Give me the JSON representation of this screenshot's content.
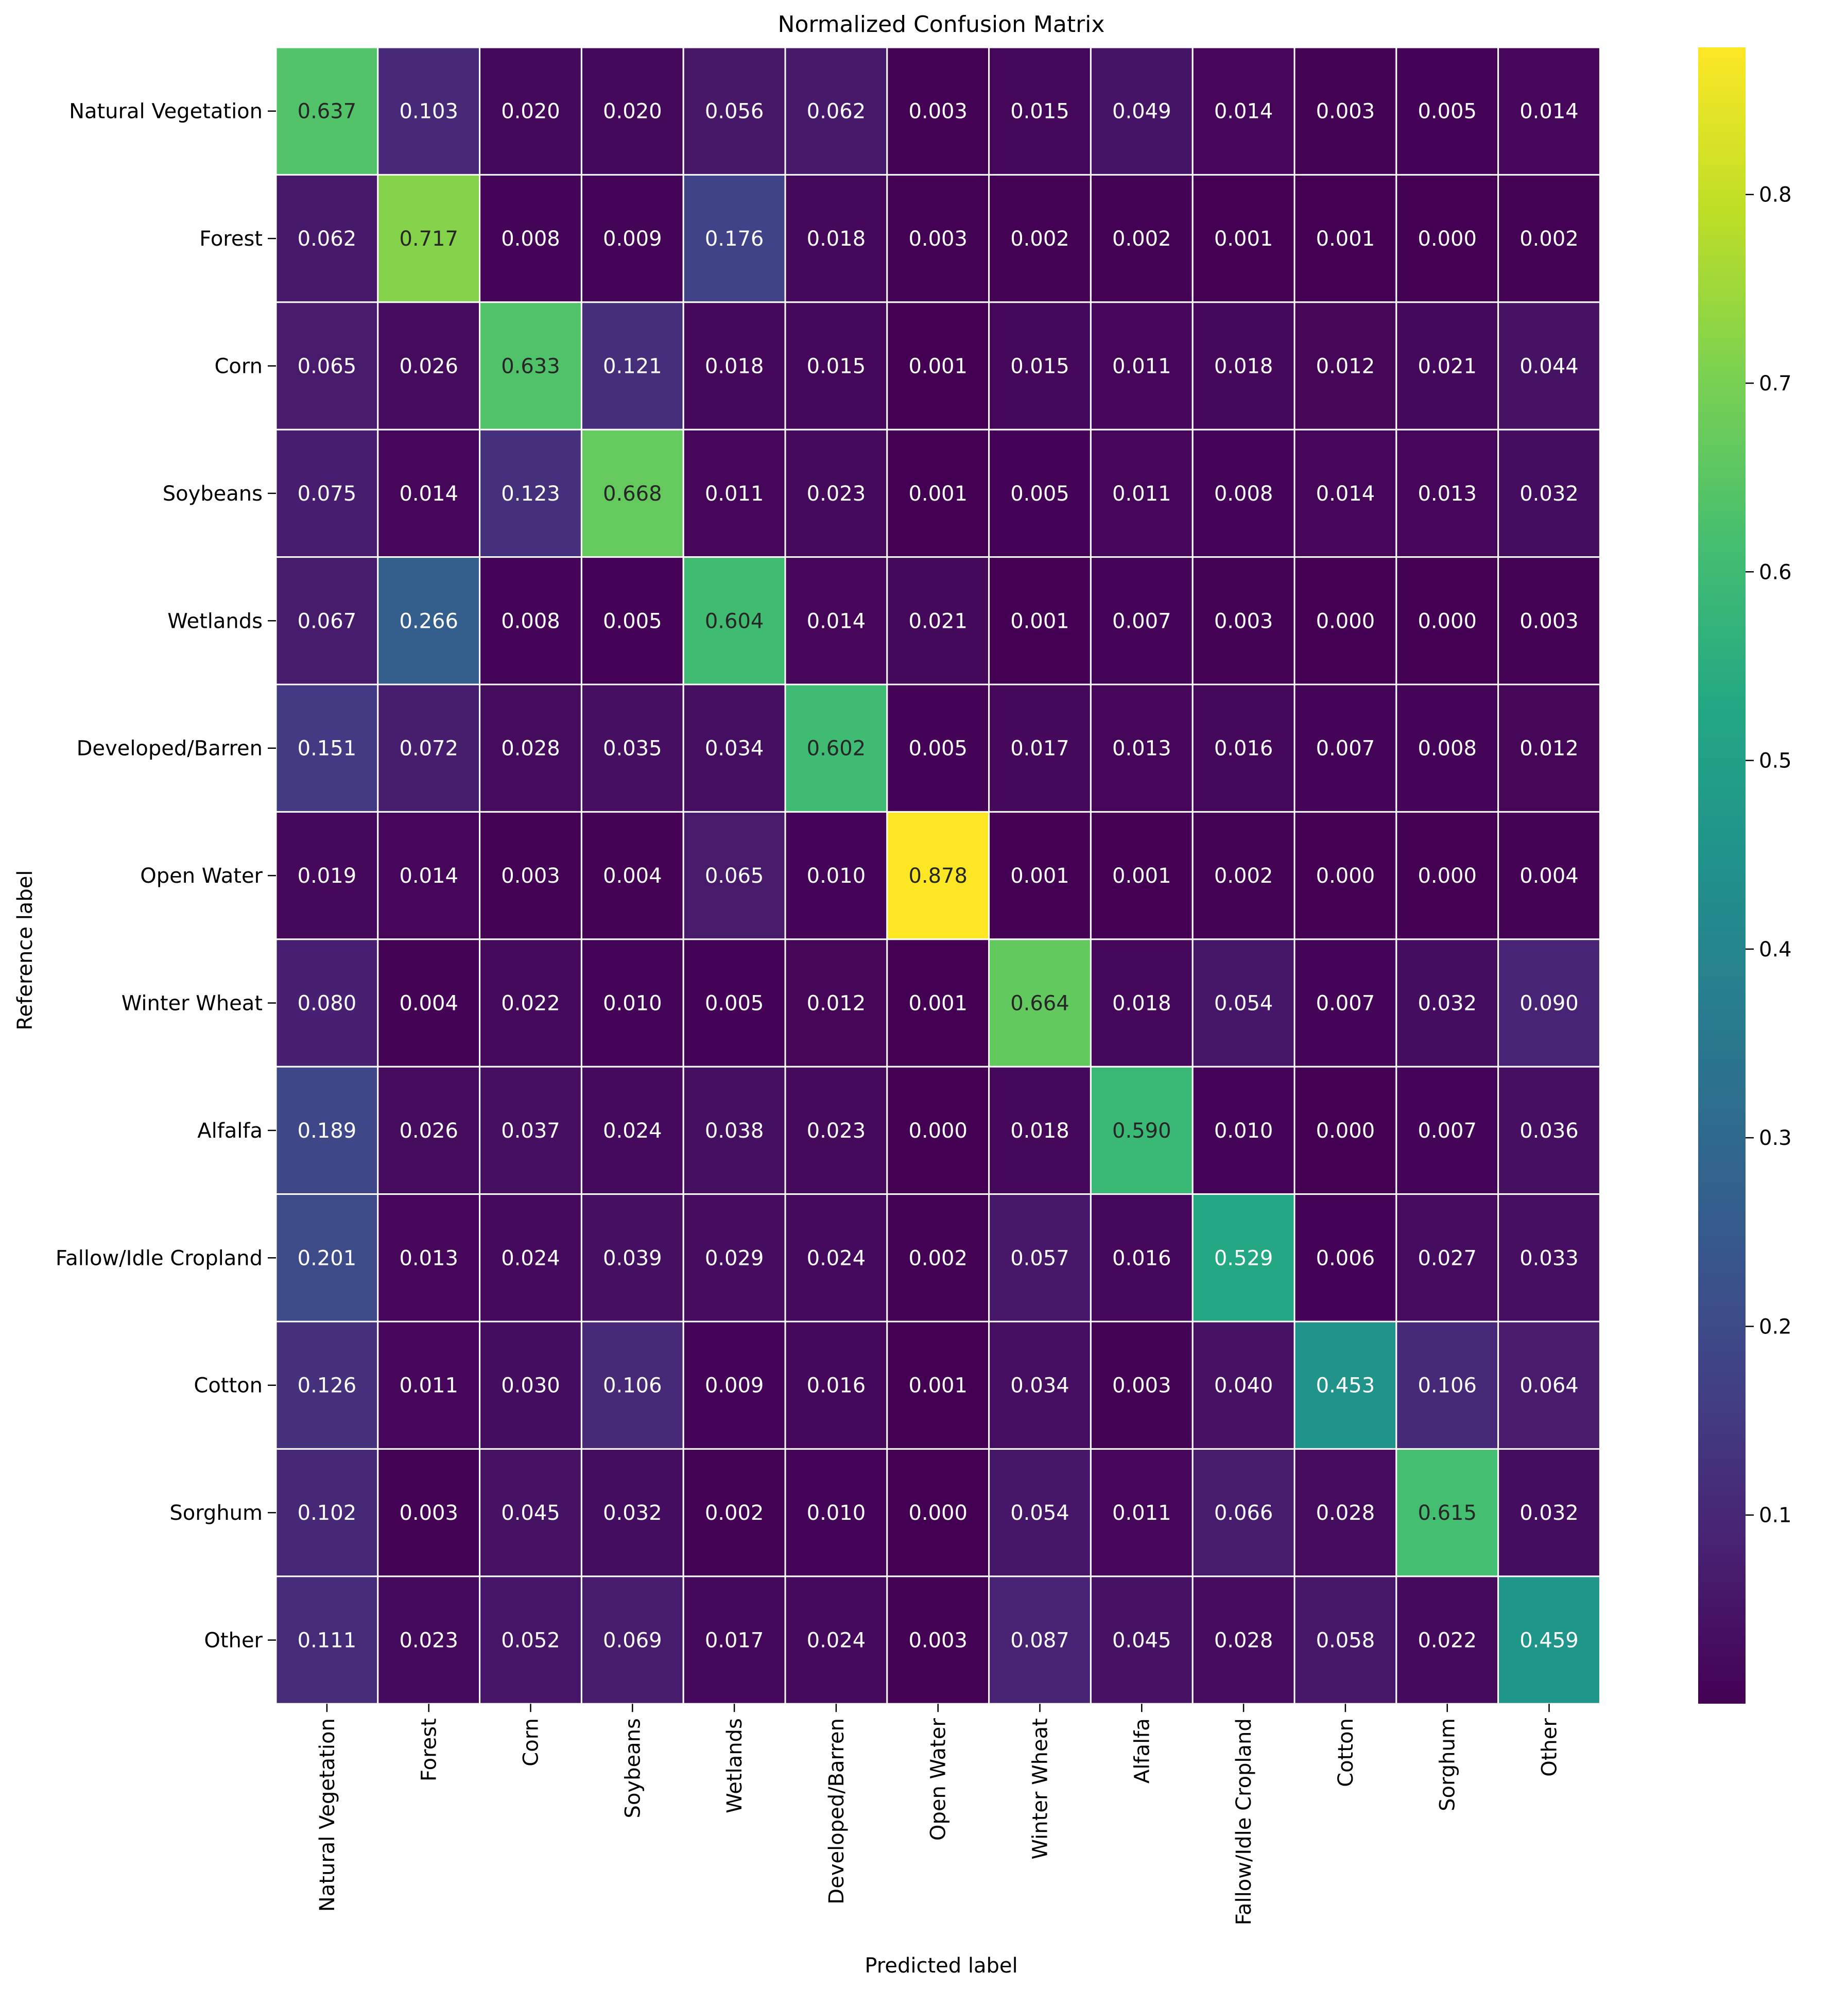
{
  "chart_data": {
    "type": "heatmap",
    "title": "Normalized Confusion Matrix",
    "xlabel": "Predicted label",
    "ylabel": "Reference label",
    "row_labels": [
      "Natural Vegetation",
      "Forest",
      "Corn",
      "Soybeans",
      "Wetlands",
      "Developed/Barren",
      "Open Water",
      "Winter Wheat",
      "Alfalfa",
      "Fallow/Idle Cropland",
      "Cotton",
      "Sorghum",
      "Other"
    ],
    "col_labels": [
      "Natural Vegetation",
      "Forest",
      "Corn",
      "Soybeans",
      "Wetlands",
      "Developed/Barren",
      "Open Water",
      "Winter Wheat",
      "Alfalfa",
      "Fallow/Idle Cropland",
      "Cotton",
      "Sorghum",
      "Other"
    ],
    "values": [
      [
        0.637,
        0.103,
        0.02,
        0.02,
        0.056,
        0.062,
        0.003,
        0.015,
        0.049,
        0.014,
        0.003,
        0.005,
        0.014
      ],
      [
        0.062,
        0.717,
        0.008,
        0.009,
        0.176,
        0.018,
        0.003,
        0.002,
        0.002,
        0.001,
        0.001,
        0.0,
        0.002
      ],
      [
        0.065,
        0.026,
        0.633,
        0.121,
        0.018,
        0.015,
        0.001,
        0.015,
        0.011,
        0.018,
        0.012,
        0.021,
        0.044
      ],
      [
        0.075,
        0.014,
        0.123,
        0.668,
        0.011,
        0.023,
        0.001,
        0.005,
        0.011,
        0.008,
        0.014,
        0.013,
        0.032
      ],
      [
        0.067,
        0.266,
        0.008,
        0.005,
        0.604,
        0.014,
        0.021,
        0.001,
        0.007,
        0.003,
        0.0,
        0.0,
        0.003
      ],
      [
        0.151,
        0.072,
        0.028,
        0.035,
        0.034,
        0.602,
        0.005,
        0.017,
        0.013,
        0.016,
        0.007,
        0.008,
        0.012
      ],
      [
        0.019,
        0.014,
        0.003,
        0.004,
        0.065,
        0.01,
        0.878,
        0.001,
        0.001,
        0.002,
        0.0,
        0.0,
        0.004
      ],
      [
        0.08,
        0.004,
        0.022,
        0.01,
        0.005,
        0.012,
        0.001,
        0.664,
        0.018,
        0.054,
        0.007,
        0.032,
        0.09
      ],
      [
        0.189,
        0.026,
        0.037,
        0.024,
        0.038,
        0.023,
        0.0,
        0.018,
        0.59,
        0.01,
        0.0,
        0.007,
        0.036
      ],
      [
        0.201,
        0.013,
        0.024,
        0.039,
        0.029,
        0.024,
        0.002,
        0.057,
        0.016,
        0.529,
        0.006,
        0.027,
        0.033
      ],
      [
        0.126,
        0.011,
        0.03,
        0.106,
        0.009,
        0.016,
        0.001,
        0.034,
        0.003,
        0.04,
        0.453,
        0.106,
        0.064
      ],
      [
        0.102,
        0.003,
        0.045,
        0.032,
        0.002,
        0.01,
        0.0,
        0.054,
        0.011,
        0.066,
        0.028,
        0.615,
        0.032
      ],
      [
        0.111,
        0.023,
        0.052,
        0.069,
        0.017,
        0.024,
        0.003,
        0.087,
        0.045,
        0.028,
        0.058,
        0.022,
        0.459
      ]
    ],
    "colorbar": {
      "colormap": "viridis",
      "vmin": 0.0,
      "vmax": 0.878,
      "ticks": [
        0.1,
        0.2,
        0.3,
        0.4,
        0.5,
        0.6,
        0.7,
        0.8
      ],
      "tick_labels": [
        "0.1",
        "0.2",
        "0.3",
        "0.4",
        "0.5",
        "0.6",
        "0.7",
        "0.8"
      ]
    },
    "annotation_text_colors": {
      "light": "#ffffff",
      "dark": "#262626"
    }
  }
}
